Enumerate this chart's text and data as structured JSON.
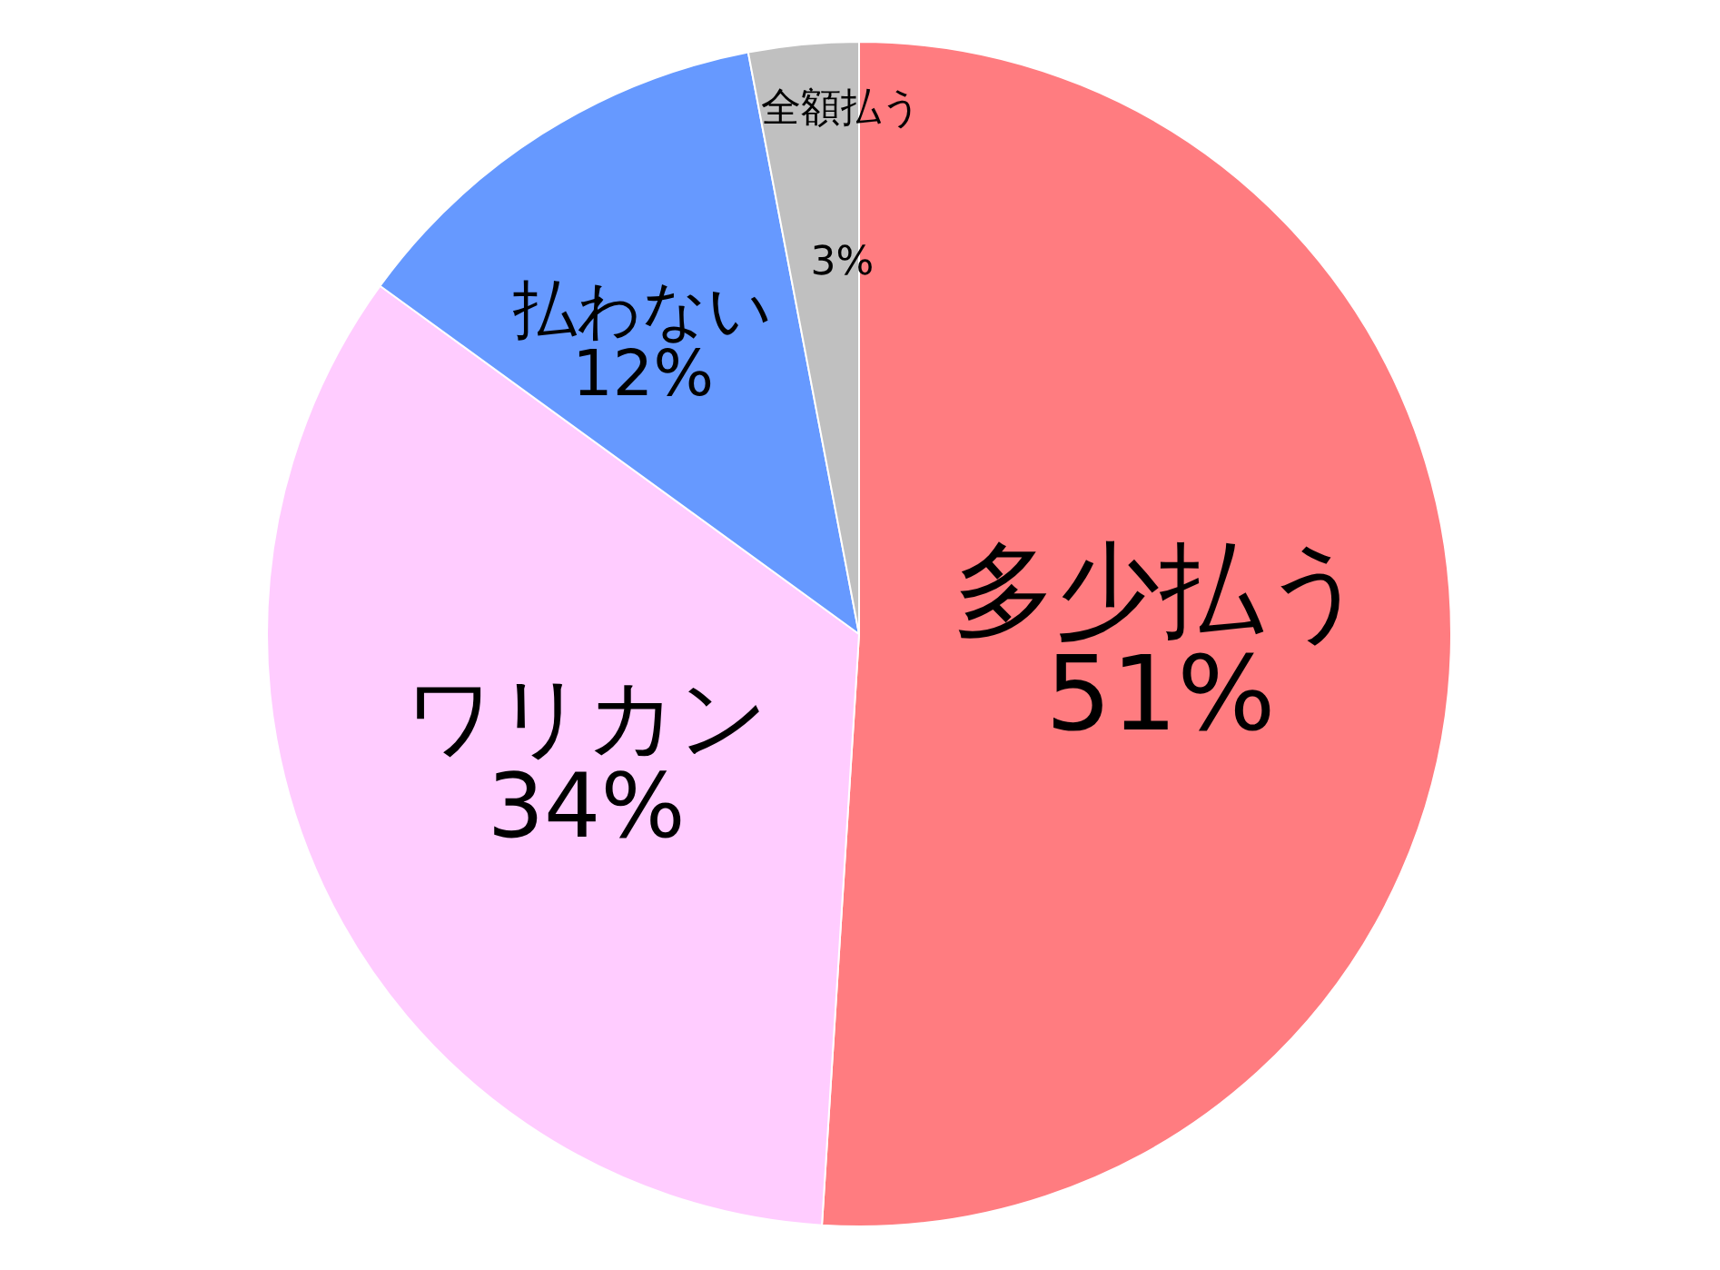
{
  "chart_data": {
    "type": "pie",
    "categories": [
      "多少払う",
      "ワリカン",
      "払わない",
      "全額払う"
    ],
    "values": [
      51,
      34,
      12,
      3
    ],
    "colors": [
      "#ff7c80",
      "#ffccff",
      "#6699ff",
      "#c0c0c0"
    ],
    "value_labels": [
      "51%",
      "34%",
      "12%",
      "3%"
    ]
  }
}
